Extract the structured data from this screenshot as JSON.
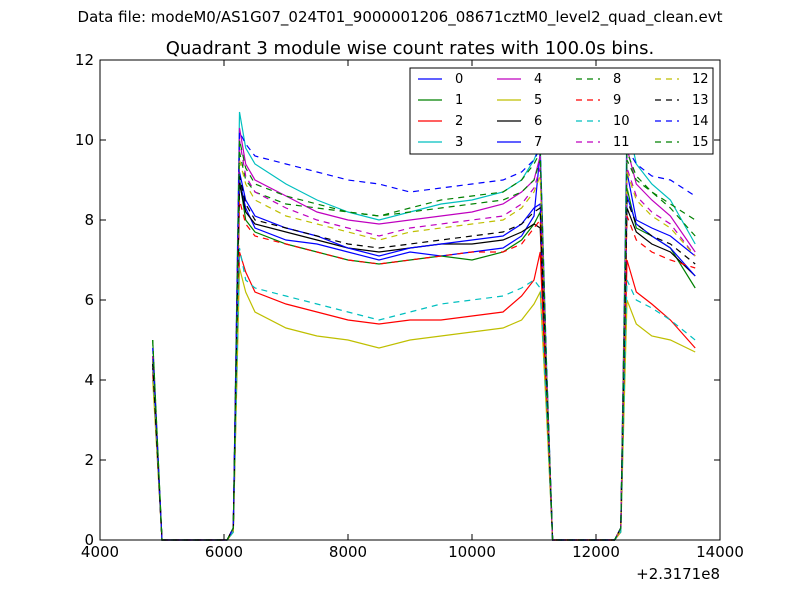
{
  "suptitle": "Data file: modeM0/AS1G07_024T01_9000001206_08671cztM0_level2_quad_clean.evt",
  "chart_data": {
    "type": "line",
    "title": "Quadrant 3 module wise count rates with 100.0s bins.",
    "xlabel": "",
    "ylabel": "",
    "x_offset_label": "+2.3171e8",
    "xlim": [
      4000,
      14000
    ],
    "ylim": [
      0,
      12
    ],
    "xticks": [
      4000,
      6000,
      8000,
      10000,
      12000,
      14000
    ],
    "yticks": [
      0,
      2,
      4,
      6,
      8,
      10,
      12
    ],
    "grid": false,
    "legend": {
      "placement": "top-right",
      "columns": 4
    },
    "x": [
      4850,
      5000,
      6050,
      6150,
      6250,
      6350,
      6500,
      7000,
      7500,
      8000,
      8500,
      9000,
      9500,
      10000,
      10500,
      10800,
      11000,
      11100,
      11200,
      11300,
      12300,
      12400,
      12500,
      12650,
      12900,
      13200,
      13600
    ],
    "series": [
      {
        "name": "0",
        "color": "#0000ff",
        "dash": "solid",
        "values": [
          4.5,
          0,
          0,
          0.3,
          9.0,
          8.3,
          7.8,
          7.5,
          7.4,
          7.2,
          7.0,
          7.2,
          7.1,
          7.2,
          7.3,
          7.6,
          8.1,
          9.7,
          4.0,
          0,
          0,
          0.3,
          9.2,
          8.0,
          7.8,
          7.6,
          7.1
        ]
      },
      {
        "name": "1",
        "color": "#008000",
        "dash": "solid",
        "values": [
          5.0,
          0,
          0,
          0.3,
          9.0,
          8.0,
          7.7,
          7.4,
          7.2,
          7.0,
          6.9,
          7.0,
          7.1,
          7.0,
          7.2,
          7.5,
          7.9,
          8.2,
          4.0,
          0,
          0,
          0.3,
          8.8,
          7.8,
          7.6,
          7.3,
          6.3
        ]
      },
      {
        "name": "2",
        "color": "#ff0000",
        "dash": "solid",
        "values": [
          4.2,
          0,
          0,
          0.2,
          7.2,
          6.7,
          6.2,
          5.9,
          5.7,
          5.5,
          5.4,
          5.5,
          5.5,
          5.6,
          5.7,
          6.1,
          6.5,
          7.2,
          3.5,
          0,
          0,
          0.2,
          7.0,
          6.2,
          5.9,
          5.5,
          4.8
        ]
      },
      {
        "name": "3",
        "color": "#00bfbf",
        "dash": "solid",
        "values": [
          4.6,
          0,
          0,
          0.3,
          10.7,
          9.8,
          9.4,
          8.9,
          8.5,
          8.2,
          8.0,
          8.2,
          8.4,
          8.5,
          8.7,
          9.0,
          9.5,
          9.9,
          4.5,
          0,
          0,
          0.3,
          10.5,
          9.4,
          8.9,
          8.5,
          7.4
        ]
      },
      {
        "name": "4",
        "color": "#bf00bf",
        "dash": "solid",
        "values": [
          4.5,
          0,
          0,
          0.3,
          10.3,
          9.4,
          9.0,
          8.6,
          8.2,
          8.0,
          7.9,
          8.0,
          8.1,
          8.2,
          8.4,
          8.7,
          9.0,
          9.6,
          4.3,
          0,
          0,
          0.3,
          9.8,
          8.9,
          8.5,
          8.1,
          7.2
        ]
      },
      {
        "name": "5",
        "color": "#bfbf00",
        "dash": "solid",
        "values": [
          4.0,
          0,
          0,
          0.2,
          6.8,
          6.2,
          5.7,
          5.3,
          5.1,
          5.0,
          4.8,
          5.0,
          5.1,
          5.2,
          5.3,
          5.5,
          5.9,
          6.2,
          3.2,
          0,
          0,
          0.2,
          6.0,
          5.4,
          5.1,
          5.0,
          4.7
        ]
      },
      {
        "name": "6",
        "color": "#000000",
        "dash": "solid",
        "values": [
          4.5,
          0,
          0,
          0.3,
          8.9,
          8.2,
          7.9,
          7.7,
          7.5,
          7.3,
          7.2,
          7.3,
          7.4,
          7.4,
          7.5,
          7.7,
          7.9,
          7.8,
          4.0,
          0,
          0,
          0.3,
          8.3,
          7.7,
          7.4,
          7.2,
          6.6
        ]
      },
      {
        "name": "7",
        "color": "#0000ff",
        "dash": "solid",
        "values": [
          4.5,
          0,
          0,
          0.3,
          9.2,
          8.5,
          8.1,
          7.8,
          7.6,
          7.3,
          7.1,
          7.3,
          7.4,
          7.5,
          7.6,
          7.9,
          8.3,
          8.4,
          4.0,
          0,
          0,
          0.3,
          8.6,
          7.9,
          7.6,
          7.3,
          6.6
        ]
      },
      {
        "name": "8",
        "color": "#008000",
        "dash": "dashed",
        "values": [
          4.6,
          0,
          0,
          0.3,
          9.7,
          9.0,
          8.7,
          8.4,
          8.3,
          8.2,
          8.1,
          8.2,
          8.3,
          8.4,
          8.5,
          8.7,
          9.0,
          9.5,
          4.3,
          0,
          0,
          0.3,
          9.5,
          9.0,
          8.7,
          8.4,
          8.0
        ]
      },
      {
        "name": "9",
        "color": "#ff0000",
        "dash": "dashed",
        "values": [
          4.3,
          0,
          0,
          0.3,
          8.5,
          7.9,
          7.6,
          7.4,
          7.2,
          7.0,
          6.9,
          7.0,
          7.1,
          7.2,
          7.2,
          7.4,
          7.8,
          8.0,
          3.8,
          0,
          0,
          0.3,
          8.1,
          7.5,
          7.2,
          7.0,
          6.8
        ]
      },
      {
        "name": "10",
        "color": "#00bfbf",
        "dash": "dashed",
        "values": [
          4.3,
          0,
          0,
          0.2,
          7.3,
          6.5,
          6.3,
          6.1,
          5.9,
          5.7,
          5.5,
          5.7,
          5.9,
          6.0,
          6.1,
          6.3,
          6.5,
          6.3,
          3.4,
          0,
          0,
          0.2,
          6.5,
          6.0,
          5.8,
          5.5,
          5.0
        ]
      },
      {
        "name": "11",
        "color": "#bf00bf",
        "dash": "dashed",
        "values": [
          4.6,
          0,
          0,
          0.3,
          10.0,
          9.1,
          8.7,
          8.3,
          8.0,
          7.8,
          7.6,
          7.8,
          7.9,
          8.0,
          8.1,
          8.4,
          8.8,
          9.3,
          4.3,
          0,
          0,
          0.3,
          9.3,
          8.6,
          8.2,
          7.9,
          7.1
        ]
      },
      {
        "name": "12",
        "color": "#bfbf00",
        "dash": "dashed",
        "values": [
          4.5,
          0,
          0,
          0.3,
          9.5,
          8.9,
          8.5,
          8.1,
          7.9,
          7.7,
          7.5,
          7.7,
          7.8,
          7.9,
          8.0,
          8.3,
          8.7,
          9.1,
          4.2,
          0,
          0,
          0.3,
          9.2,
          8.5,
          8.1,
          7.8,
          7.1
        ]
      },
      {
        "name": "13",
        "color": "#000000",
        "dash": "dashed",
        "values": [
          4.4,
          0,
          0,
          0.3,
          9.1,
          8.4,
          8.0,
          7.8,
          7.6,
          7.4,
          7.3,
          7.4,
          7.5,
          7.6,
          7.7,
          7.9,
          8.2,
          8.3,
          4.0,
          0,
          0,
          0.3,
          8.5,
          7.9,
          7.6,
          7.4,
          6.9
        ]
      },
      {
        "name": "14",
        "color": "#0000ff",
        "dash": "dashed",
        "values": [
          4.8,
          0,
          0,
          0.3,
          10.2,
          9.9,
          9.6,
          9.4,
          9.2,
          9.0,
          8.9,
          8.7,
          8.8,
          8.9,
          9.0,
          9.2,
          9.5,
          9.8,
          4.5,
          0,
          0,
          0.3,
          9.8,
          9.4,
          9.1,
          9.0,
          8.6
        ]
      },
      {
        "name": "15",
        "color": "#008000",
        "dash": "dashed",
        "values": [
          5.0,
          0,
          0,
          0.3,
          10.0,
          9.3,
          8.9,
          8.6,
          8.4,
          8.2,
          8.1,
          8.3,
          8.5,
          8.6,
          8.7,
          9.0,
          9.4,
          9.7,
          4.4,
          0,
          0,
          0.3,
          9.7,
          9.1,
          8.7,
          8.3,
          7.6
        ]
      }
    ]
  }
}
